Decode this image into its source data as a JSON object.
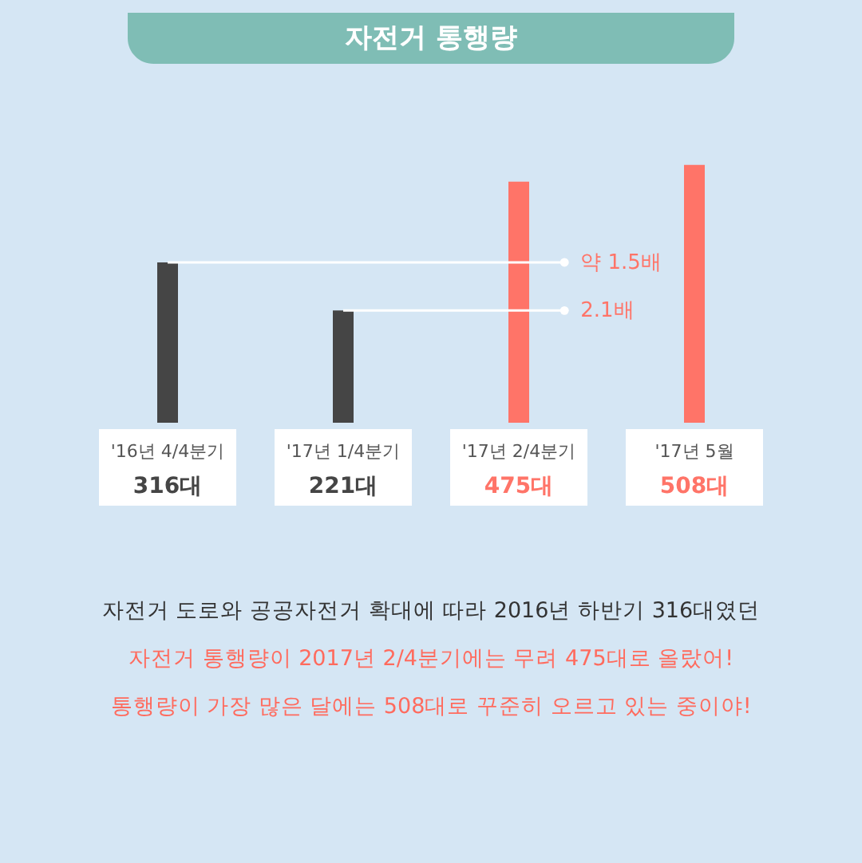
{
  "chart_data": {
    "type": "bar",
    "title": "자전거 통행량",
    "categories": [
      "'16년 4/4분기",
      "'17년 1/4분기",
      "'17년 2/4분기",
      "'17년 5월"
    ],
    "values": [
      316,
      221,
      475,
      508
    ],
    "colors": [
      "#454545",
      "#454545",
      "#ff7468",
      "#ff7468"
    ],
    "value_labels": [
      "316대",
      "221대",
      "475대",
      "508대"
    ],
    "annotations": [
      "약 1.5배",
      "2.1배",
      "자전거 도로와 공공자전거 확대에 따라 2016년 하반기 316대였던",
      "자전거 통행량이 2017년 2/4분기에는 무려 475대로 올랐어!",
      "통행량이 가장 많은 달에는 508대로 꾸준히 오르고 있는 중이야!"
    ],
    "grid": false
  }
}
